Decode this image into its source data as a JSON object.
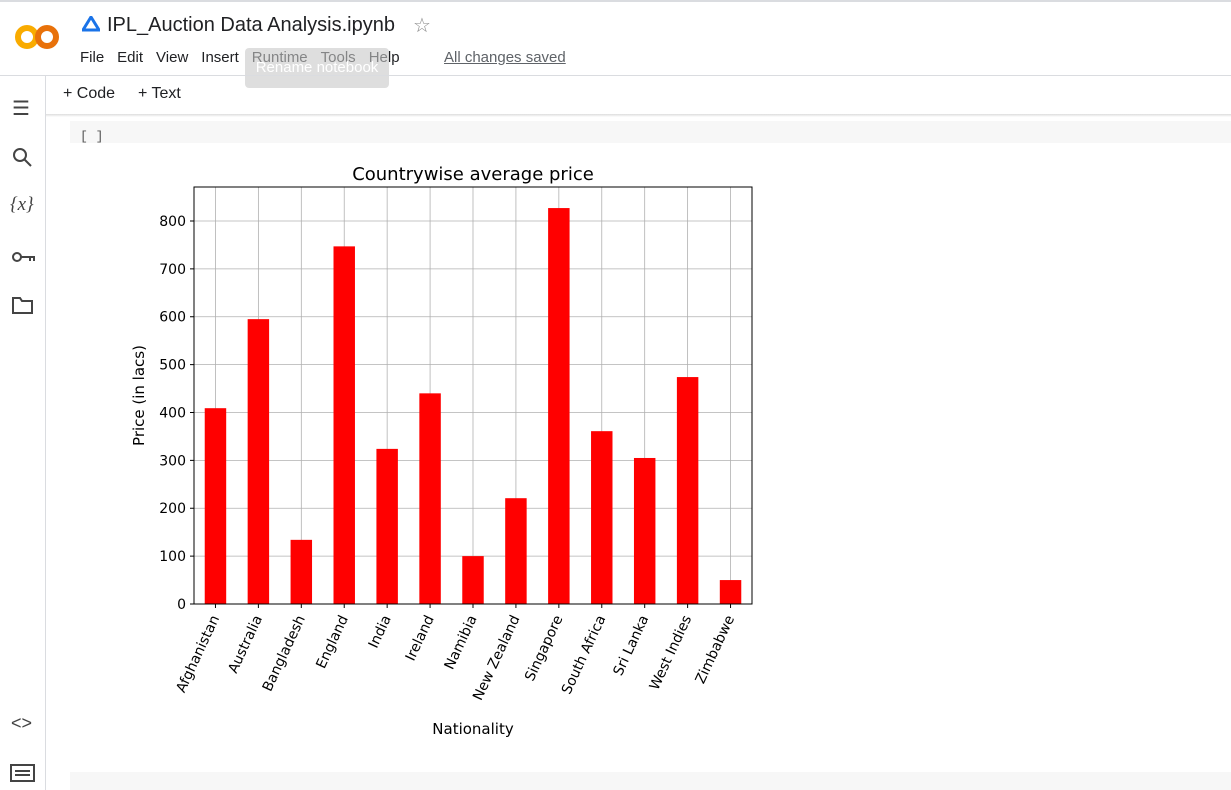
{
  "header": {
    "title": "IPL_Auction Data Analysis.ipynb",
    "status": "All changes saved",
    "tooltip": "Rename notebook"
  },
  "menu": [
    "File",
    "Edit",
    "View",
    "Insert",
    "Runtime",
    "Tools",
    "Help"
  ],
  "toolbar": [
    "Code",
    "Text"
  ],
  "sidebar": {
    "variables_icon": "{x}"
  },
  "cell": {
    "prompt": "[ ]"
  },
  "chart_data": {
    "type": "bar",
    "title": "Countrywise average price",
    "x_label": "Nationality",
    "y_label": "Price (in lacs)",
    "categories": [
      "Afghanistan",
      "Australia",
      "Bangladesh",
      "England",
      "India",
      "Ireland",
      "Namibia",
      "New Zealand",
      "Singapore",
      "South Africa",
      "Sri Lanka",
      "West Indies",
      "Zimbabwe"
    ],
    "values": [
      409,
      595,
      134,
      747,
      324,
      440,
      100,
      221,
      827,
      361,
      305,
      474,
      50
    ],
    "color": "#ff0000",
    "ylim": [
      0,
      871
    ],
    "yticks": [
      0,
      100,
      200,
      300,
      400,
      500,
      600,
      700,
      800
    ],
    "grid": true
  }
}
